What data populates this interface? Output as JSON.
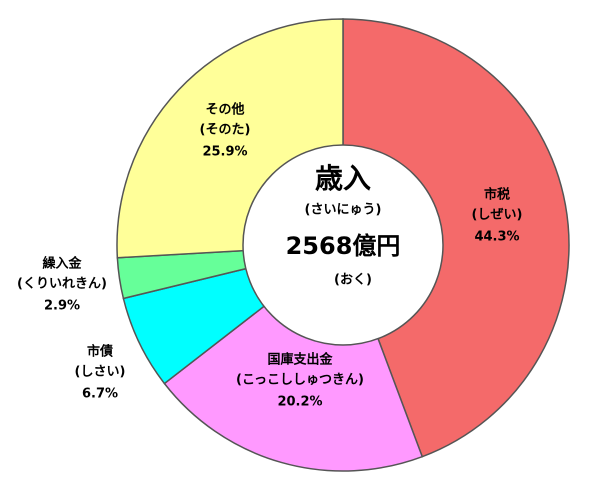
{
  "chart_data": {
    "type": "donut",
    "center_title": "歳入",
    "center_title_reading": "(さいにゅう)",
    "center_total": "2568億円",
    "center_total_reading": "(おく)",
    "categories": [
      "市税",
      "国庫支出金",
      "市債",
      "繰入金",
      "その他"
    ],
    "readings": [
      "(しぜい)",
      "(こっこししゅつきん)",
      "(しさい)",
      "(くりいれきん)",
      "(そのた)"
    ],
    "values": [
      44.3,
      20.2,
      6.7,
      2.9,
      25.9
    ],
    "value_labels": [
      "44.3%",
      "20.2%",
      "6.7%",
      "2.9%",
      "25.9%"
    ],
    "colors": [
      "#f46a6a",
      "#ff99ff",
      "#00ffff",
      "#66ff99",
      "#ffff99"
    ]
  }
}
